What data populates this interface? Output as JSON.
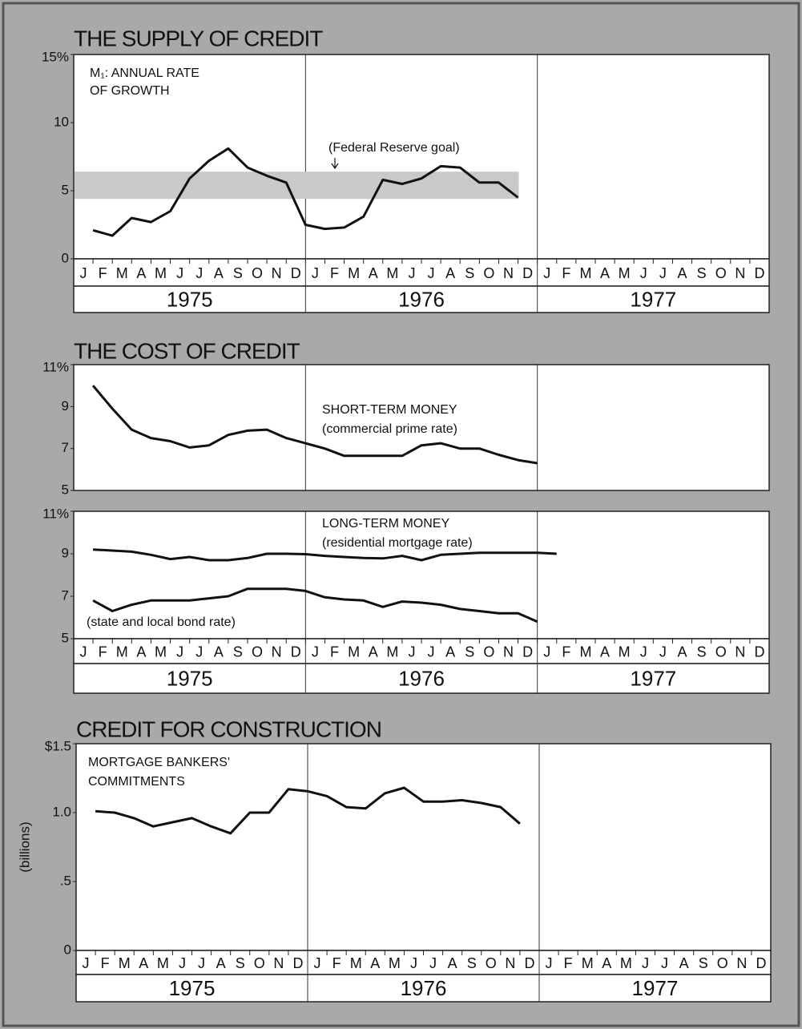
{
  "chart_data": [
    {
      "type": "line",
      "title": "THE SUPPLY OF CREDIT",
      "categories": [
        "J",
        "F",
        "M",
        "A",
        "M",
        "J",
        "J",
        "A",
        "S",
        "O",
        "N",
        "D",
        "J",
        "F",
        "M",
        "A",
        "M",
        "J",
        "J",
        "A",
        "S",
        "O",
        "N",
        "D",
        "J",
        "F",
        "M",
        "A",
        "M",
        "J",
        "J",
        "A",
        "S",
        "O",
        "N",
        "D"
      ],
      "years": [
        "1975",
        "1976",
        "1977"
      ],
      "ylim": [
        0,
        15
      ],
      "yticks": [
        0,
        5,
        10,
        {
          "value": 15,
          "label": "15%"
        }
      ],
      "goal_band": {
        "label": "(Federal Reserve goal)",
        "range": [
          4.4,
          6.4
        ],
        "color": "#c9c9c9"
      },
      "series": [
        {
          "label": [
            "M₁: ANNUAL RATE",
            "OF GROWTH"
          ],
          "color": "#111111",
          "values": [
            2.1,
            1.7,
            3.0,
            2.7,
            3.5,
            5.9,
            7.2,
            8.1,
            6.7,
            6.1,
            5.6,
            2.5,
            2.2,
            2.3,
            3.1,
            5.8,
            5.5,
            5.9,
            6.8,
            6.7,
            5.6,
            5.6,
            4.5,
            null,
            null,
            null,
            null,
            null,
            null,
            null,
            null,
            null,
            null,
            null,
            null,
            null
          ]
        }
      ]
    },
    {
      "type": "line",
      "title": "THE COST OF CREDIT",
      "categories": [
        "J",
        "F",
        "M",
        "A",
        "M",
        "J",
        "J",
        "A",
        "S",
        "O",
        "N",
        "D",
        "J",
        "F",
        "M",
        "A",
        "M",
        "J",
        "J",
        "A",
        "S",
        "O",
        "N",
        "D",
        "J",
        "F",
        "M",
        "A",
        "M",
        "J",
        "J",
        "A",
        "S",
        "O",
        "N",
        "D"
      ],
      "years": [
        "1975",
        "1976",
        "1977"
      ],
      "panels": [
        {
          "ylim": [
            5,
            11
          ],
          "yticks": [
            5,
            7,
            9,
            {
              "value": 11,
              "label": "11%"
            }
          ],
          "series": [
            {
              "label": [
                "SHORT-TERM MONEY",
                "(commercial prime rate)"
              ],
              "color": "#111111",
              "values": [
                10.0,
                8.9,
                7.9,
                7.5,
                7.35,
                7.05,
                7.15,
                7.65,
                7.85,
                7.9,
                7.5,
                7.25,
                7.0,
                6.65,
                6.65,
                6.65,
                6.65,
                7.15,
                7.25,
                7.0,
                7.0,
                6.7,
                6.45,
                6.3,
                null,
                null,
                null,
                null,
                null,
                null,
                null,
                null,
                null,
                null,
                null,
                null
              ]
            }
          ]
        },
        {
          "ylim": [
            5,
            11
          ],
          "yticks": [
            5,
            7,
            9,
            {
              "value": 11,
              "label": "11%"
            }
          ],
          "series": [
            {
              "label": [
                "LONG-TERM MONEY",
                "(residential mortgage rate)"
              ],
              "color": "#111111",
              "values": [
                9.2,
                9.15,
                9.1,
                8.95,
                8.75,
                8.85,
                8.7,
                8.7,
                8.8,
                9.0,
                9.0,
                8.98,
                8.9,
                8.85,
                8.8,
                8.78,
                8.9,
                8.7,
                8.95,
                9.0,
                9.05,
                9.05,
                9.05,
                9.05,
                9.0,
                null,
                null,
                null,
                null,
                null,
                null,
                null,
                null,
                null,
                null,
                null
              ]
            },
            {
              "label": [
                "(state and local bond rate)"
              ],
              "color": "#111111",
              "values": [
                6.8,
                6.3,
                6.6,
                6.8,
                6.8,
                6.8,
                6.9,
                7.0,
                7.35,
                7.35,
                7.35,
                7.25,
                6.95,
                6.85,
                6.8,
                6.5,
                6.75,
                6.7,
                6.6,
                6.4,
                6.3,
                6.2,
                6.2,
                5.8,
                null,
                null,
                null,
                null,
                null,
                null,
                null,
                null,
                null,
                null,
                null,
                null
              ]
            }
          ]
        }
      ]
    },
    {
      "type": "line",
      "title": "CREDIT FOR CONSTRUCTION",
      "ylabel": "(billions)",
      "categories": [
        "J",
        "F",
        "M",
        "A",
        "M",
        "J",
        "J",
        "A",
        "S",
        "O",
        "N",
        "D",
        "J",
        "F",
        "M",
        "A",
        "M",
        "J",
        "J",
        "A",
        "S",
        "O",
        "N",
        "D",
        "J",
        "F",
        "M",
        "A",
        "M",
        "J",
        "J",
        "A",
        "S",
        "O",
        "N",
        "D"
      ],
      "years": [
        "1975",
        "1976",
        "1977"
      ],
      "ylim": [
        0,
        1.5
      ],
      "yticks": [
        0,
        {
          "value": 0.5,
          "label": ".5"
        },
        {
          "value": 1,
          "label": "1.0"
        },
        {
          "value": 1.5,
          "label": "$1.5"
        }
      ],
      "series": [
        {
          "label": [
            "MORTGAGE BANKERS'",
            "COMMITMENTS"
          ],
          "color": "#111111",
          "values": [
            1.01,
            1.0,
            0.96,
            0.9,
            0.93,
            0.96,
            0.9,
            0.85,
            1.0,
            1.0,
            1.17,
            1.155,
            1.12,
            1.04,
            1.03,
            1.14,
            1.18,
            1.08,
            1.08,
            1.09,
            1.07,
            1.04,
            0.92,
            null,
            null,
            null,
            null,
            null,
            null,
            null,
            null,
            null,
            null,
            null,
            null,
            null
          ]
        }
      ]
    }
  ]
}
